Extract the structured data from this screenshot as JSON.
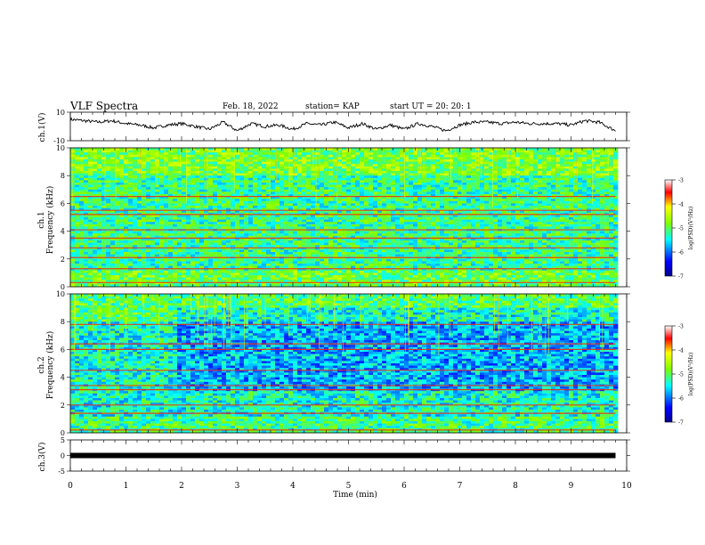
{
  "header": {
    "title": "VLF Spectra",
    "date": "Feb. 18, 2022",
    "station": "station= KAP",
    "start": "start  UT =   20: 20: 1"
  },
  "chart_data": [
    {
      "type": "line",
      "panel": "ch1-waveform",
      "title": "",
      "xlabel": "",
      "ylabel": "ch.1(V)",
      "xlim": [
        0,
        10
      ],
      "ylim": [
        -10,
        10
      ],
      "yticks": [
        "10",
        "-10"
      ],
      "x": [
        0,
        0.25,
        0.5,
        0.75,
        1.0,
        1.25,
        1.5,
        1.75,
        2.0,
        2.25,
        2.5,
        2.75,
        3.0,
        3.25,
        3.5,
        3.75,
        4.0,
        4.25,
        4.5,
        4.75,
        5.0,
        5.25,
        5.5,
        5.75,
        6.0,
        6.25,
        6.5,
        6.75,
        7.0,
        7.25,
        7.5,
        7.75,
        8.0,
        8.25,
        8.5,
        8.75,
        9.0,
        9.25,
        9.5,
        9.8
      ],
      "y": [
        5,
        4,
        3,
        4,
        2,
        1,
        -1,
        1,
        2,
        0,
        -2,
        3,
        -3,
        2,
        0,
        1,
        -2,
        2,
        1,
        3,
        -1,
        2,
        -2,
        1,
        -2,
        2,
        0,
        -3,
        1,
        3,
        3,
        2,
        3,
        2,
        2,
        2,
        1,
        4,
        3,
        -3
      ],
      "grid": false
    },
    {
      "type": "heatmap",
      "panel": "ch1-spectrogram",
      "xlabel": "",
      "ylabel": "ch.1 Frequency (kHz)",
      "xlim": [
        0,
        10
      ],
      "ylim": [
        0,
        10
      ],
      "yticks": [
        "0",
        "2",
        "4",
        "6",
        "8",
        "10"
      ],
      "colorbar": {
        "label": "log(PSD)(V²/Hz)",
        "range": [
          -7,
          -3
        ],
        "ticks": [
          "-3",
          "-4",
          "-5",
          "-6",
          "-7"
        ]
      },
      "dominant_level": -5.2,
      "strong_lines_khz": [
        0.3,
        1.3,
        2.1,
        2.8,
        3.5,
        4.1,
        5.2,
        5.5,
        6.5
      ]
    },
    {
      "type": "heatmap",
      "panel": "ch2-spectrogram",
      "xlabel": "",
      "ylabel": "ch.2 Frequency (kHz)",
      "xlim": [
        0,
        10
      ],
      "ylim": [
        0,
        10
      ],
      "yticks": [
        "0",
        "2",
        "4",
        "6",
        "8",
        "10"
      ],
      "colorbar": {
        "label": "log(PSD)(V²/Hz)",
        "range": [
          -7,
          -3
        ],
        "ticks": [
          "-3",
          "-4",
          "-5",
          "-6",
          "-7"
        ]
      },
      "dominant_level": -5.4,
      "strong_lines_khz": [
        0.2,
        1.4,
        2.0,
        3.1,
        3.4,
        4.5,
        6.0,
        6.4,
        7.8
      ]
    },
    {
      "type": "line",
      "panel": "ch3-waveform",
      "xlabel": "Time (min)",
      "ylabel": "ch.3(V)",
      "xlim": [
        0,
        10
      ],
      "ylim": [
        -5,
        5
      ],
      "yticks": [
        "5",
        "0",
        "-5"
      ],
      "xticks": [
        "0",
        "1",
        "2",
        "3",
        "4",
        "5",
        "6",
        "7",
        "8",
        "9",
        "10"
      ],
      "x": [
        0,
        9.8
      ],
      "y": [
        0,
        0
      ],
      "grid": false
    }
  ]
}
